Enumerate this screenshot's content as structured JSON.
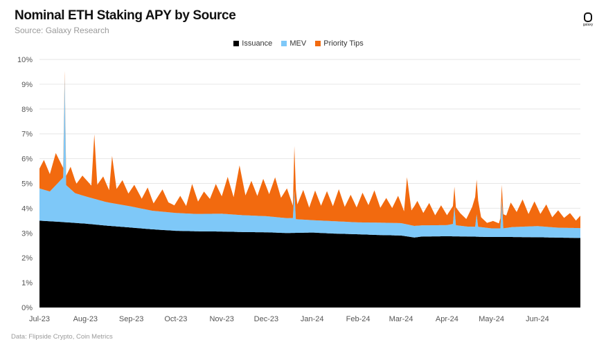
{
  "header": {
    "title": "Nominal ETH Staking APY by Source",
    "subtitle": "Source: Galaxy Research",
    "logo_text": "galaxy"
  },
  "footer": {
    "source": "Data: Flipside Crypto, Coin Metrics"
  },
  "colors": {
    "issuance": "#000000",
    "mev": "#7ec8f8",
    "priority_tips": "#f26a0f",
    "grid": "#e6e6e6"
  },
  "chart_data": {
    "type": "area",
    "stacked": true,
    "title": "Nominal ETH Staking APY by Source",
    "subtitle": "Source: Galaxy Research",
    "legend_position": "top-center",
    "grid": "horizontal",
    "y_ticks": [
      "0%",
      "1%",
      "2%",
      "3%",
      "4%",
      "5%",
      "6%",
      "7%",
      "8%",
      "9%",
      "10%"
    ],
    "ylim": [
      0,
      10
    ],
    "x_ticks": [
      "Jul-23",
      "Aug-23",
      "Sep-23",
      "Oct-23",
      "Nov-23",
      "Dec-23",
      "Jan-24",
      "Feb-24",
      "Mar-24",
      "Apr-24",
      "May-24",
      "Jun-24"
    ],
    "x_start": "2023-07-01",
    "x_end": "2024-06-30",
    "series": [
      {
        "name": "Issuance",
        "key": "issuance",
        "points": [
          [
            "2023-07-01",
            3.5
          ],
          [
            "2023-07-15",
            3.45
          ],
          [
            "2023-08-01",
            3.38
          ],
          [
            "2023-08-15",
            3.3
          ],
          [
            "2023-09-01",
            3.22
          ],
          [
            "2023-09-15",
            3.15
          ],
          [
            "2023-10-01",
            3.09
          ],
          [
            "2023-10-15",
            3.07
          ],
          [
            "2023-11-01",
            3.06
          ],
          [
            "2023-11-15",
            3.04
          ],
          [
            "2023-12-01",
            3.03
          ],
          [
            "2023-12-15",
            3.0
          ],
          [
            "2024-01-01",
            3.02
          ],
          [
            "2024-01-15",
            2.98
          ],
          [
            "2024-02-01",
            2.95
          ],
          [
            "2024-02-15",
            2.92
          ],
          [
            "2024-03-01",
            2.9
          ],
          [
            "2024-03-10",
            2.82
          ],
          [
            "2024-03-15",
            2.86
          ],
          [
            "2024-04-01",
            2.87
          ],
          [
            "2024-04-15",
            2.86
          ],
          [
            "2024-05-01",
            2.84
          ],
          [
            "2024-05-15",
            2.84
          ],
          [
            "2024-06-01",
            2.83
          ],
          [
            "2024-06-30",
            2.8
          ]
        ]
      },
      {
        "name": "MEV",
        "key": "mev",
        "points": [
          [
            "2023-07-01",
            1.3
          ],
          [
            "2023-07-08",
            1.2
          ],
          [
            "2023-07-17",
            1.8
          ],
          [
            "2023-07-18",
            5.9
          ],
          [
            "2023-07-19",
            1.5
          ],
          [
            "2023-07-25",
            1.2
          ],
          [
            "2023-08-01",
            1.1
          ],
          [
            "2023-08-15",
            0.95
          ],
          [
            "2023-09-01",
            0.85
          ],
          [
            "2023-09-15",
            0.75
          ],
          [
            "2023-10-01",
            0.72
          ],
          [
            "2023-10-15",
            0.7
          ],
          [
            "2023-11-01",
            0.72
          ],
          [
            "2023-11-15",
            0.68
          ],
          [
            "2023-12-01",
            0.65
          ],
          [
            "2023-12-15",
            0.6
          ],
          [
            "2023-12-19",
            0.6
          ],
          [
            "2023-12-20",
            1.7
          ],
          [
            "2023-12-21",
            0.55
          ],
          [
            "2024-01-01",
            0.5
          ],
          [
            "2024-01-15",
            0.5
          ],
          [
            "2024-02-01",
            0.48
          ],
          [
            "2024-02-15",
            0.5
          ],
          [
            "2024-03-01",
            0.5
          ],
          [
            "2024-03-15",
            0.45
          ],
          [
            "2024-04-01",
            0.45
          ],
          [
            "2024-04-05",
            0.5
          ],
          [
            "2024-04-06",
            1.2
          ],
          [
            "2024-04-07",
            0.45
          ],
          [
            "2024-04-15",
            0.4
          ],
          [
            "2024-04-20",
            0.4
          ],
          [
            "2024-04-21",
            0.9
          ],
          [
            "2024-04-22",
            0.4
          ],
          [
            "2024-05-01",
            0.35
          ],
          [
            "2024-05-07",
            0.35
          ],
          [
            "2024-05-08",
            1.5
          ],
          [
            "2024-05-09",
            0.35
          ],
          [
            "2024-05-15",
            0.4
          ],
          [
            "2024-06-01",
            0.45
          ],
          [
            "2024-06-15",
            0.4
          ],
          [
            "2024-06-30",
            0.4
          ]
        ]
      },
      {
        "name": "Priority Tips",
        "key": "priority_tips",
        "points": [
          [
            "2023-07-01",
            0.8
          ],
          [
            "2023-07-04",
            1.2
          ],
          [
            "2023-07-08",
            0.7
          ],
          [
            "2023-07-12",
            1.3
          ],
          [
            "2023-07-18",
            0.2
          ],
          [
            "2023-07-22",
            0.9
          ],
          [
            "2023-07-26",
            0.4
          ],
          [
            "2023-07-30",
            0.8
          ],
          [
            "2023-08-05",
            0.5
          ],
          [
            "2023-08-07",
            2.6
          ],
          [
            "2023-08-09",
            0.6
          ],
          [
            "2023-08-13",
            1.0
          ],
          [
            "2023-08-17",
            0.5
          ],
          [
            "2023-08-19",
            1.9
          ],
          [
            "2023-08-22",
            0.6
          ],
          [
            "2023-08-26",
            1.0
          ],
          [
            "2023-08-30",
            0.5
          ],
          [
            "2023-09-03",
            0.9
          ],
          [
            "2023-09-08",
            0.4
          ],
          [
            "2023-09-12",
            0.9
          ],
          [
            "2023-09-16",
            0.3
          ],
          [
            "2023-09-22",
            0.9
          ],
          [
            "2023-09-26",
            0.4
          ],
          [
            "2023-09-30",
            0.3
          ],
          [
            "2023-10-04",
            0.7
          ],
          [
            "2023-10-08",
            0.3
          ],
          [
            "2023-10-12",
            1.2
          ],
          [
            "2023-10-16",
            0.5
          ],
          [
            "2023-10-20",
            0.9
          ],
          [
            "2023-10-24",
            0.6
          ],
          [
            "2023-10-28",
            1.2
          ],
          [
            "2023-11-01",
            0.7
          ],
          [
            "2023-11-05",
            1.5
          ],
          [
            "2023-11-09",
            0.7
          ],
          [
            "2023-11-13",
            2.0
          ],
          [
            "2023-11-17",
            0.8
          ],
          [
            "2023-11-21",
            1.4
          ],
          [
            "2023-11-25",
            0.8
          ],
          [
            "2023-11-29",
            1.5
          ],
          [
            "2023-12-03",
            0.9
          ],
          [
            "2023-12-07",
            1.6
          ],
          [
            "2023-12-11",
            0.8
          ],
          [
            "2023-12-15",
            1.2
          ],
          [
            "2023-12-19",
            0.5
          ],
          [
            "2023-12-20",
            1.8
          ],
          [
            "2023-12-22",
            0.6
          ],
          [
            "2023-12-26",
            1.2
          ],
          [
            "2023-12-30",
            0.5
          ],
          [
            "2024-01-03",
            1.2
          ],
          [
            "2024-01-07",
            0.6
          ],
          [
            "2024-01-11",
            1.2
          ],
          [
            "2024-01-15",
            0.6
          ],
          [
            "2024-01-19",
            1.3
          ],
          [
            "2024-01-23",
            0.6
          ],
          [
            "2024-01-27",
            1.1
          ],
          [
            "2024-01-31",
            0.6
          ],
          [
            "2024-02-04",
            1.2
          ],
          [
            "2024-02-08",
            0.7
          ],
          [
            "2024-02-12",
            1.3
          ],
          [
            "2024-02-16",
            0.6
          ],
          [
            "2024-02-20",
            1.0
          ],
          [
            "2024-02-24",
            0.6
          ],
          [
            "2024-02-28",
            1.1
          ],
          [
            "2024-03-03",
            0.5
          ],
          [
            "2024-03-05",
            1.9
          ],
          [
            "2024-03-08",
            0.6
          ],
          [
            "2024-03-12",
            1.0
          ],
          [
            "2024-03-16",
            0.5
          ],
          [
            "2024-03-20",
            0.9
          ],
          [
            "2024-03-24",
            0.4
          ],
          [
            "2024-03-28",
            0.8
          ],
          [
            "2024-04-01",
            0.4
          ],
          [
            "2024-04-06",
            0.8
          ],
          [
            "2024-04-10",
            0.5
          ],
          [
            "2024-04-14",
            0.3
          ],
          [
            "2024-04-18",
            0.8
          ],
          [
            "2024-04-21",
            1.4
          ],
          [
            "2024-04-24",
            0.4
          ],
          [
            "2024-04-28",
            0.2
          ],
          [
            "2024-05-02",
            0.3
          ],
          [
            "2024-05-06",
            0.2
          ],
          [
            "2024-05-08",
            0.6
          ],
          [
            "2024-05-11",
            0.5
          ],
          [
            "2024-05-14",
            1.0
          ],
          [
            "2024-05-18",
            0.6
          ],
          [
            "2024-05-22",
            1.1
          ],
          [
            "2024-05-26",
            0.5
          ],
          [
            "2024-05-30",
            1.0
          ],
          [
            "2024-06-03",
            0.5
          ],
          [
            "2024-06-07",
            0.9
          ],
          [
            "2024-06-11",
            0.4
          ],
          [
            "2024-06-15",
            0.7
          ],
          [
            "2024-06-19",
            0.4
          ],
          [
            "2024-06-23",
            0.6
          ],
          [
            "2024-06-27",
            0.3
          ],
          [
            "2024-06-30",
            0.5
          ]
        ]
      }
    ]
  }
}
